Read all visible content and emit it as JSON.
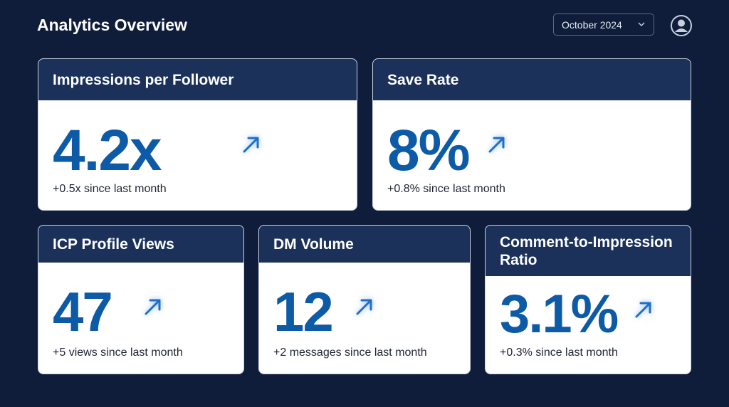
{
  "header": {
    "title": "Analytics Overview",
    "date_selector": "October 2024"
  },
  "cards": [
    {
      "title": "Impressions per Follower",
      "value": "4.2x",
      "change": "+0.5x since last month"
    },
    {
      "title": "Save Rate",
      "value": "8%",
      "change": "+0.8% since last month"
    },
    {
      "title": "ICP Profile Views",
      "value": "47",
      "change": "+5 views since last month"
    },
    {
      "title": "DM Volume",
      "value": "12",
      "change": "+2 messages since last month"
    },
    {
      "title": "Comment-to-Impression Ratio",
      "value": "3.1%",
      "change": "+0.3% since last month"
    }
  ]
}
